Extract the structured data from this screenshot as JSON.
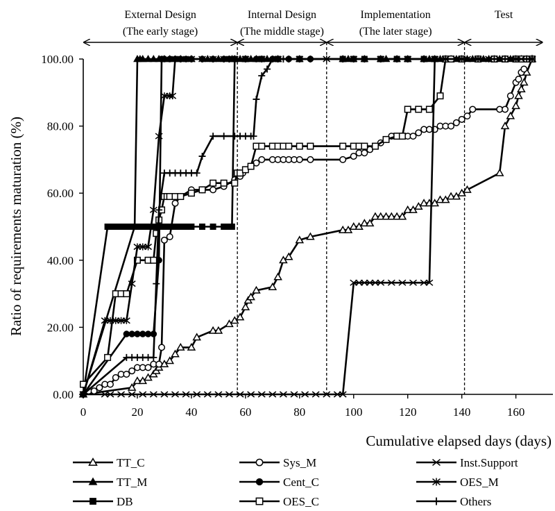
{
  "chart_data": {
    "type": "line",
    "title": "",
    "xlabel": "Cumulative elapsed days (days)",
    "ylabel": "Ratio of requirements maturation (%)",
    "xlim": [
      0,
      170
    ],
    "ylim": [
      0,
      100
    ],
    "x_ticks": [
      0,
      20,
      40,
      60,
      80,
      100,
      120,
      140,
      160
    ],
    "y_ticks": [
      0,
      20,
      40,
      60,
      80,
      100
    ],
    "x_tick_labels": [
      "0",
      "20",
      "40",
      "60",
      "80",
      "100",
      "120",
      "140",
      "160"
    ],
    "y_tick_labels": [
      "0.00",
      "20.00",
      "40.00",
      "60.00",
      "80.00",
      "100.00"
    ],
    "grid": false,
    "legend_position": "bottom",
    "phases": [
      {
        "label_line1": "External Design",
        "label_line2": "(The early stage)",
        "start": 0,
        "end": 57
      },
      {
        "label_line1": "Internal Design",
        "label_line2": "(The middle stage)",
        "start": 57,
        "end": 90
      },
      {
        "label_line1": "Implementation",
        "label_line2": "(The later stage)",
        "start": 90,
        "end": 141
      },
      {
        "label_line1": "Test",
        "label_line2": "",
        "start": 141,
        "end": 170
      }
    ],
    "phase_boundaries": [
      57,
      90,
      141
    ],
    "series": [
      {
        "name": "TT_C",
        "marker": "triangle-open",
        "x": [
          0,
          18,
          20,
          22,
          24,
          26,
          27,
          28,
          30,
          32,
          34,
          36,
          40,
          42,
          48,
          50,
          54,
          56,
          58,
          60,
          61,
          62,
          64,
          70,
          72,
          74,
          76,
          80,
          84,
          96,
          98,
          100,
          102,
          104,
          106,
          108,
          110,
          112,
          114,
          116,
          118,
          120,
          122,
          124,
          126,
          128,
          130,
          132,
          134,
          136,
          138,
          140,
          142,
          154,
          156,
          158,
          160,
          161,
          162,
          163,
          164,
          166
        ],
        "y": [
          0,
          2,
          4,
          4,
          5,
          6,
          7,
          8,
          9,
          10,
          12,
          14,
          14,
          17,
          19,
          19,
          21,
          22,
          23,
          26,
          28,
          29,
          31,
          32,
          35,
          40,
          41,
          46,
          47,
          49,
          49,
          50,
          50,
          51,
          51,
          53,
          53,
          53,
          53,
          53,
          53,
          55,
          55,
          56,
          57,
          57,
          57,
          58,
          58,
          59,
          59,
          60,
          61,
          66,
          80,
          83,
          86,
          89,
          91,
          93,
          96,
          100
        ]
      },
      {
        "name": "TT_M",
        "marker": "triangle-filled",
        "x": [
          0,
          19,
          20,
          21,
          22,
          24,
          26,
          28,
          30,
          32,
          36,
          40,
          46,
          50,
          55,
          56,
          58,
          60,
          62,
          64,
          68,
          72,
          80,
          96,
          98,
          104,
          110,
          112,
          116,
          120,
          126,
          128,
          130,
          132,
          134,
          136,
          138,
          140,
          142,
          144,
          146,
          148,
          150,
          152,
          154,
          156,
          158,
          160,
          162,
          164,
          166
        ],
        "y": [
          0,
          50,
          100,
          100,
          100,
          100,
          100,
          100,
          100,
          100,
          100,
          100,
          100,
          100,
          100,
          100,
          100,
          100,
          100,
          100,
          100,
          100,
          100,
          100,
          100,
          100,
          100,
          100,
          100,
          100,
          100,
          100,
          100,
          100,
          100,
          100,
          100,
          100,
          100,
          100,
          100,
          100,
          100,
          100,
          100,
          100,
          100,
          100,
          100,
          100,
          100
        ]
      },
      {
        "name": "DB",
        "marker": "square-filled",
        "x": [
          0,
          9,
          10,
          12,
          14,
          16,
          18,
          20,
          22,
          24,
          26,
          28,
          30,
          32,
          34,
          36,
          38,
          40,
          44,
          48,
          52,
          54,
          55,
          56,
          60,
          66,
          72,
          80,
          96,
          100,
          104,
          110,
          116,
          120,
          126,
          130,
          134,
          140,
          146,
          152,
          156,
          160,
          164,
          166
        ],
        "y": [
          0,
          50,
          50,
          50,
          50,
          50,
          50,
          50,
          50,
          50,
          50,
          50,
          50,
          50,
          50,
          50,
          50,
          50,
          50,
          50,
          50,
          50,
          50,
          100,
          100,
          100,
          100,
          100,
          100,
          100,
          100,
          100,
          100,
          100,
          100,
          100,
          100,
          100,
          100,
          100,
          100,
          100,
          100,
          100
        ]
      },
      {
        "name": "Sys_M",
        "marker": "circle-open",
        "x": [
          0,
          2,
          4,
          6,
          8,
          10,
          12,
          14,
          16,
          18,
          20,
          22,
          24,
          26,
          28,
          29,
          30,
          32,
          34,
          36,
          40,
          44,
          48,
          52,
          56,
          58,
          59,
          60,
          62,
          64,
          66,
          70,
          72,
          74,
          76,
          78,
          80,
          84,
          96,
          100,
          102,
          104,
          106,
          108,
          110,
          112,
          114,
          116,
          118,
          120,
          122,
          124,
          126,
          128,
          130,
          132,
          134,
          136,
          138,
          140,
          142,
          144,
          154,
          156,
          158,
          160,
          161,
          162,
          163
        ],
        "y": [
          0,
          1,
          1,
          2,
          3,
          3,
          5,
          6,
          6,
          7,
          8,
          8,
          8,
          9,
          9,
          14,
          46,
          47,
          57,
          59,
          61,
          61,
          61,
          62,
          64,
          65,
          66,
          67,
          68,
          69,
          70,
          70,
          70,
          70,
          70,
          70,
          70,
          70,
          70,
          71,
          72,
          72,
          73,
          74,
          75,
          76,
          77,
          77,
          77,
          77,
          77,
          78,
          79,
          79,
          79,
          80,
          80,
          80,
          81,
          82,
          83,
          85,
          85,
          85,
          89,
          93,
          94,
          96,
          97
        ]
      },
      {
        "name": "Cent_C",
        "marker": "circle-filled",
        "x": [
          0,
          16,
          18,
          20,
          22,
          24,
          26,
          28,
          29,
          30,
          32,
          34,
          36,
          38,
          40,
          44,
          48,
          52,
          54,
          56,
          60,
          64,
          70,
          76,
          80,
          84,
          96,
          100,
          104,
          110,
          116,
          120,
          126,
          130,
          134,
          140,
          146,
          152,
          156,
          160,
          164,
          166
        ],
        "y": [
          0,
          18,
          18,
          18,
          18,
          18,
          18,
          40,
          100,
          100,
          100,
          100,
          100,
          100,
          100,
          100,
          100,
          100,
          100,
          100,
          100,
          100,
          100,
          100,
          100,
          100,
          100,
          100,
          100,
          100,
          100,
          100,
          100,
          100,
          100,
          100,
          100,
          100,
          100,
          100,
          100,
          100
        ]
      },
      {
        "name": "OES_C",
        "marker": "square-open",
        "x": [
          0,
          9,
          12,
          14,
          16,
          20,
          24,
          26,
          27,
          28,
          29,
          30,
          31,
          32,
          34,
          36,
          40,
          44,
          48,
          52,
          56,
          57,
          58,
          60,
          62,
          64,
          66,
          70,
          72,
          74,
          76,
          80,
          84,
          96,
          100,
          102,
          104,
          108,
          112,
          116,
          118,
          120,
          124,
          128,
          132,
          134,
          136,
          140,
          146,
          152,
          156,
          160,
          162,
          164,
          166
        ],
        "y": [
          3,
          11,
          30,
          30,
          30,
          40,
          40,
          40,
          48,
          52,
          55,
          59,
          59,
          59,
          59,
          59,
          60,
          61,
          63,
          63,
          63,
          66,
          66,
          67,
          68,
          74,
          74,
          74,
          74,
          74,
          74,
          74,
          74,
          74,
          74,
          74,
          74,
          74,
          76,
          77,
          77,
          85,
          85,
          85,
          89,
          100,
          100,
          100,
          100,
          100,
          100,
          100,
          100,
          100,
          100
        ]
      },
      {
        "name": "Inst.Support",
        "marker": "x",
        "x": [
          0,
          8,
          10,
          14,
          18,
          22,
          26,
          30,
          34,
          38,
          42,
          46,
          50,
          54,
          58,
          62,
          66,
          70,
          74,
          78,
          82,
          86,
          90,
          94,
          96,
          100,
          102,
          104,
          106,
          108,
          110,
          114,
          118,
          122,
          126,
          128,
          130,
          134,
          138,
          142,
          146,
          150,
          154,
          158,
          162,
          166
        ],
        "y": [
          0,
          0,
          0,
          0,
          0,
          0,
          0,
          0,
          0,
          0,
          0,
          0,
          0,
          0,
          0,
          0,
          0,
          0,
          0,
          0,
          0,
          0,
          0,
          0,
          0,
          33.3,
          33.3,
          33.3,
          33.3,
          33.3,
          33.3,
          33.3,
          33.3,
          33.3,
          33.3,
          33.3,
          100,
          100,
          100,
          100,
          100,
          100,
          100,
          100,
          100,
          100
        ]
      },
      {
        "name": "OES_M",
        "marker": "star",
        "x": [
          0,
          8,
          10,
          12,
          14,
          16,
          18,
          20,
          22,
          24,
          26,
          28,
          30,
          32,
          33,
          34,
          36,
          40,
          44,
          48,
          52,
          54,
          56,
          60,
          66,
          72,
          80,
          90,
          100,
          110,
          120,
          130,
          140,
          150,
          160,
          166
        ],
        "y": [
          0,
          22,
          22,
          22,
          22,
          22,
          33,
          44,
          44,
          44,
          55,
          77,
          89,
          89,
          89,
          100,
          100,
          100,
          100,
          100,
          100,
          100,
          100,
          100,
          100,
          100,
          100,
          100,
          100,
          100,
          100,
          100,
          100,
          100,
          100,
          100
        ]
      },
      {
        "name": "Others",
        "marker": "plus",
        "x": [
          0,
          16,
          18,
          20,
          22,
          24,
          26,
          27,
          28,
          30,
          32,
          34,
          36,
          38,
          40,
          42,
          44,
          48,
          52,
          56,
          58,
          60,
          62,
          63,
          64,
          66,
          68,
          70,
          72,
          74,
          76,
          80,
          84,
          96,
          100,
          104,
          110,
          116,
          120,
          126,
          130,
          134,
          140,
          146,
          152,
          156,
          160,
          164,
          166
        ],
        "y": [
          0,
          11,
          11,
          11,
          11,
          11,
          11,
          33,
          55,
          66,
          66,
          66,
          66,
          66,
          66,
          66,
          71,
          77,
          77,
          77,
          77,
          77,
          77,
          77,
          88,
          95,
          97,
          100,
          100,
          100,
          100,
          100,
          100,
          100,
          100,
          100,
          100,
          100,
          100,
          100,
          100,
          100,
          100,
          100,
          100,
          100,
          100,
          100,
          100
        ]
      }
    ]
  }
}
